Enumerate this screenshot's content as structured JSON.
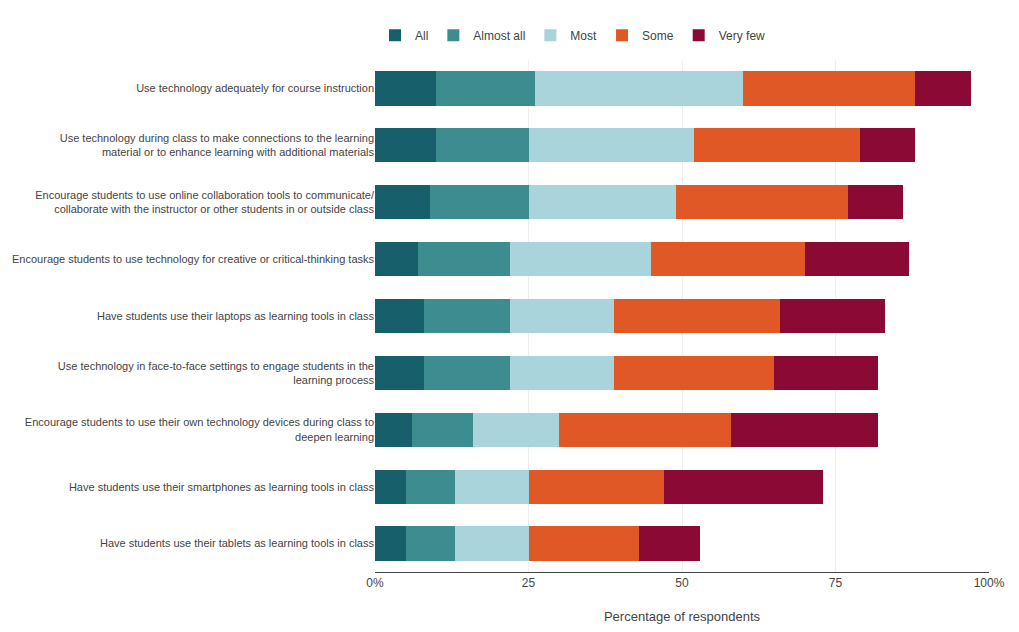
{
  "chart_data": {
    "type": "bar",
    "orientation": "horizontal",
    "stacked": true,
    "categories": [
      "Use technology adequately for course instruction",
      "Use technology during class to make connections to the learning\nmaterial or to enhance learning with additional materials",
      "Encourage students to use online collaboration tools to communicate/\ncollaborate with the instructor or other students in or outside class",
      "Encourage students to use technology for creative or critical-thinking tasks",
      "Have students use their laptops as learning tools in class",
      "Use technology in face-to-face settings to engage students in the\nlearning process",
      "Encourage students to use their own technology devices during class to\ndeepen learning",
      "Have students use their smartphones as learning tools in class",
      "Have students use their tablets as learning tools in class"
    ],
    "series": [
      {
        "name": "All",
        "color": "#165f6b",
        "values": [
          10,
          10,
          9,
          7,
          8,
          8,
          6,
          5,
          5
        ]
      },
      {
        "name": "Almost all",
        "color": "#3d8c8f",
        "values": [
          16,
          15,
          16,
          15,
          14,
          14,
          10,
          8,
          8
        ]
      },
      {
        "name": "Most",
        "color": "#aad4dc",
        "values": [
          34,
          27,
          24,
          23,
          17,
          17,
          14,
          12,
          12
        ]
      },
      {
        "name": "Some",
        "color": "#e05825",
        "values": [
          28,
          27,
          28,
          25,
          27,
          26,
          28,
          22,
          18
        ]
      },
      {
        "name": "Very few",
        "color": "#8b0a35",
        "values": [
          9,
          9,
          9,
          17,
          17,
          17,
          24,
          26,
          10
        ]
      }
    ],
    "xlabel": "Percentage of respondents",
    "xlim": [
      0,
      100
    ],
    "xticks": [
      {
        "value": 0,
        "label": "0%"
      },
      25,
      50,
      75,
      {
        "value": 100,
        "label": "100%"
      }
    ],
    "grid": true,
    "legend": "top"
  }
}
